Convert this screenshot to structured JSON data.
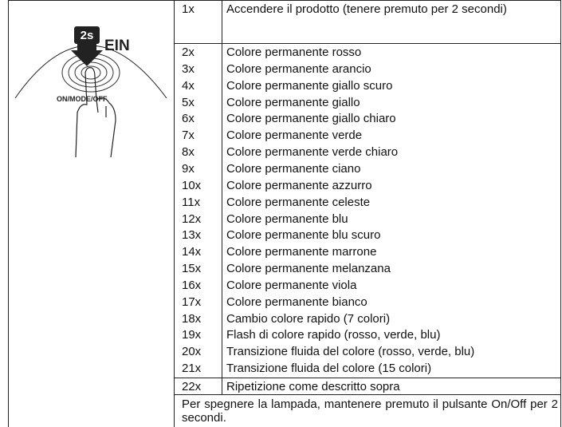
{
  "illustration": {
    "badge": "2s",
    "label": "EIN",
    "button": "ON/MODE/OFF"
  },
  "rows": [
    {
      "count": "1x",
      "text": "Accendere il prodotto (tenere premuto per 2 secondi)"
    },
    {
      "count": "2x",
      "text": "Colore permanente rosso"
    },
    {
      "count": "3x",
      "text": "Colore permanente arancio"
    },
    {
      "count": "4x",
      "text": "Colore permanente giallo scuro"
    },
    {
      "count": "5x",
      "text": "Colore permanente giallo"
    },
    {
      "count": "6x",
      "text": "Colore permanente giallo chiaro"
    },
    {
      "count": "7x",
      "text": "Colore permanente verde"
    },
    {
      "count": "8x",
      "text": "Colore permanente verde chiaro"
    },
    {
      "count": "9x",
      "text": "Colore permanente ciano"
    },
    {
      "count": "10x",
      "text": "Colore permanente azzurro"
    },
    {
      "count": "11x",
      "text": "Colore permanente celeste"
    },
    {
      "count": "12x",
      "text": "Colore permanente blu"
    },
    {
      "count": "13x",
      "text": "Colore permanente blu scuro"
    },
    {
      "count": "14x",
      "text": "Colore permanente marrone"
    },
    {
      "count": "15x",
      "text": "Colore permanente melanzana"
    },
    {
      "count": "16x",
      "text": "Colore permanente viola"
    },
    {
      "count": "17x",
      "text": "Colore permanente bianco"
    },
    {
      "count": "18x",
      "text": "Cambio colore rapido (7 colori)"
    },
    {
      "count": "19x",
      "text": "Flash di colore rapido (rosso, verde, blu)"
    },
    {
      "count": "20x",
      "text": "Transizione fluida del colore (rosso, verde, blu)"
    },
    {
      "count": "21x",
      "text": "Transizione fluida del colore (15 colori)"
    },
    {
      "count": "22x",
      "text": "Ripetizione come descritto sopra"
    }
  ],
  "footer": "Per spegnere la lampada, mantenere premuto il pulsante On/Off per 2 secondi."
}
